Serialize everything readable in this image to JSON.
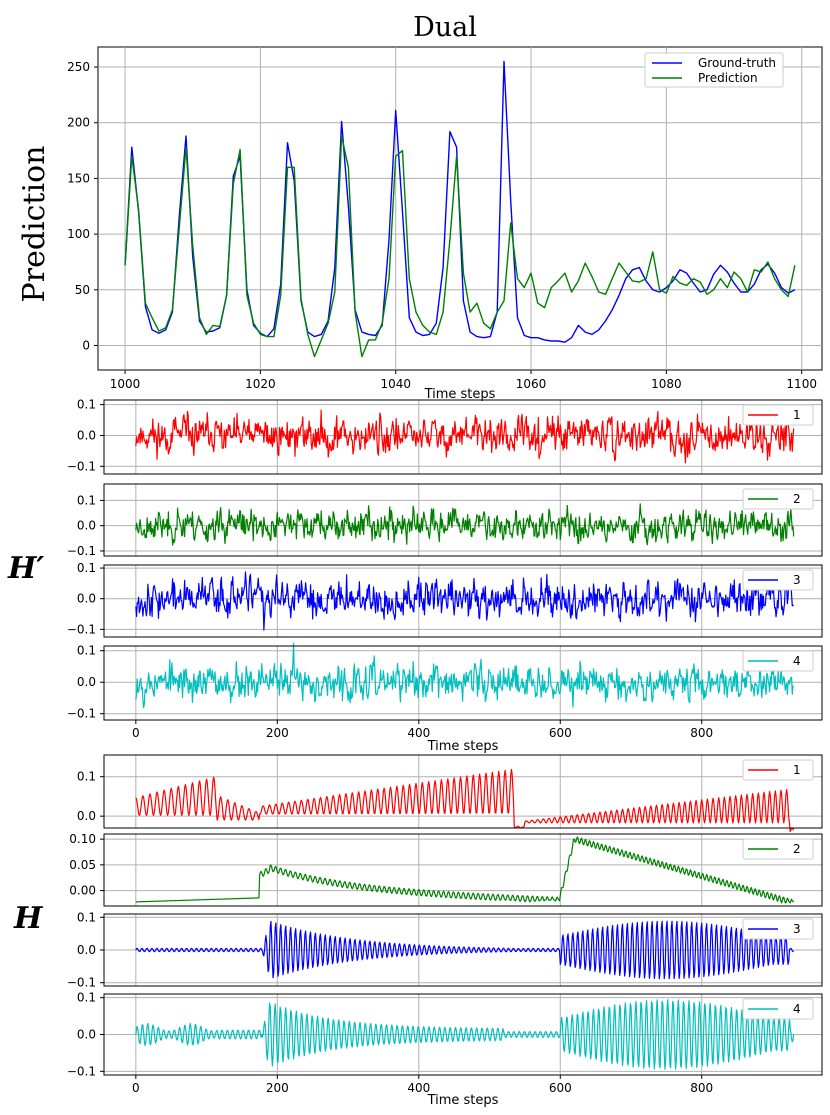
{
  "chart_data": [
    {
      "id": "top",
      "type": "line",
      "title": "Dual",
      "xlabel": "Time steps",
      "ylabel": "Prediction",
      "xlim": [
        996,
        1103
      ],
      "ylim": [
        -22,
        268
      ],
      "xticks": [
        1000,
        1020,
        1040,
        1060,
        1080,
        1100
      ],
      "yticks": [
        0,
        50,
        100,
        150,
        200,
        250
      ],
      "grid": true,
      "legend_position": "top-right",
      "series": [
        {
          "name": "Ground-truth",
          "color": "#0000ff",
          "x": [
            1000,
            1001,
            1002,
            1003,
            1004,
            1005,
            1006,
            1007,
            1008,
            1009,
            1010,
            1011,
            1012,
            1013,
            1014,
            1015,
            1016,
            1017,
            1018,
            1019,
            1020,
            1021,
            1022,
            1023,
            1024,
            1025,
            1026,
            1027,
            1028,
            1029,
            1030,
            1031,
            1032,
            1033,
            1034,
            1035,
            1036,
            1037,
            1038,
            1039,
            1040,
            1041,
            1042,
            1043,
            1044,
            1045,
            1046,
            1047,
            1048,
            1049,
            1050,
            1051,
            1052,
            1053,
            1054,
            1055,
            1056,
            1057,
            1058,
            1059,
            1060,
            1061,
            1062,
            1063,
            1064,
            1065,
            1066,
            1067,
            1068,
            1069,
            1070,
            1071,
            1072,
            1073,
            1074,
            1075,
            1076,
            1077,
            1078,
            1079,
            1080,
            1081,
            1082,
            1083,
            1084,
            1085,
            1086,
            1087,
            1088,
            1089,
            1090,
            1091,
            1092,
            1093,
            1094,
            1095,
            1096,
            1097,
            1098,
            1099
          ],
          "y": [
            72,
            178,
            120,
            35,
            14,
            11,
            14,
            30,
            115,
            188,
            80,
            22,
            12,
            13,
            16,
            45,
            152,
            170,
            50,
            18,
            11,
            8,
            15,
            55,
            182,
            148,
            40,
            12,
            8,
            10,
            22,
            70,
            201,
            125,
            32,
            12,
            10,
            9,
            18,
            95,
            211,
            120,
            25,
            12,
            9,
            10,
            20,
            70,
            192,
            178,
            40,
            12,
            8,
            7,
            8,
            30,
            255,
            130,
            25,
            9,
            7,
            7,
            5,
            4,
            4,
            3,
            7,
            18,
            12,
            10,
            14,
            22,
            32,
            45,
            60,
            68,
            70,
            58,
            50,
            48,
            52,
            58,
            68,
            65,
            56,
            48,
            50,
            64,
            72,
            66,
            56,
            48,
            48,
            55,
            68,
            73,
            65,
            52,
            47,
            50
          ]
        },
        {
          "name": "Prediction",
          "color": "#008000",
          "x": [
            1000,
            1001,
            1002,
            1003,
            1004,
            1005,
            1006,
            1007,
            1008,
            1009,
            1010,
            1011,
            1012,
            1013,
            1014,
            1015,
            1016,
            1017,
            1018,
            1019,
            1020,
            1021,
            1022,
            1023,
            1024,
            1025,
            1026,
            1027,
            1028,
            1029,
            1030,
            1031,
            1032,
            1033,
            1034,
            1035,
            1036,
            1037,
            1038,
            1039,
            1040,
            1041,
            1042,
            1043,
            1044,
            1045,
            1046,
            1047,
            1048,
            1049,
            1050,
            1051,
            1052,
            1053,
            1054,
            1055,
            1056,
            1057,
            1058,
            1059,
            1060,
            1061,
            1062,
            1063,
            1064,
            1065,
            1066,
            1067,
            1068,
            1069,
            1070,
            1071,
            1072,
            1073,
            1074,
            1075,
            1076,
            1077,
            1078,
            1079,
            1080,
            1081,
            1082,
            1083,
            1084,
            1085,
            1086,
            1087,
            1088,
            1089,
            1090,
            1091,
            1092,
            1093,
            1094,
            1095,
            1096,
            1097,
            1098,
            1099
          ],
          "y": [
            72,
            170,
            122,
            38,
            25,
            13,
            16,
            32,
            105,
            178,
            90,
            25,
            10,
            18,
            17,
            45,
            145,
            176,
            45,
            20,
            10,
            8,
            8,
            45,
            160,
            160,
            42,
            10,
            -10,
            5,
            20,
            48,
            188,
            160,
            30,
            -10,
            5,
            5,
            20,
            60,
            170,
            175,
            60,
            30,
            18,
            12,
            10,
            30,
            95,
            170,
            65,
            30,
            38,
            20,
            15,
            30,
            40,
            110,
            60,
            52,
            65,
            38,
            34,
            52,
            58,
            65,
            48,
            58,
            74,
            62,
            48,
            46,
            60,
            74,
            66,
            58,
            57,
            60,
            84,
            50,
            47,
            62,
            56,
            54,
            60,
            57,
            46,
            50,
            60,
            52,
            66,
            60,
            48,
            68,
            66,
            75,
            60,
            50,
            44,
            72
          ]
        }
      ]
    },
    {
      "id": "hprime",
      "type": "line",
      "group_label": "H′",
      "xlabel": "Time steps",
      "xlim": [
        -45,
        970
      ],
      "xticks": [
        0,
        200,
        400,
        600,
        800
      ],
      "grid": true,
      "panels": [
        {
          "name": "1",
          "color": "#ff0000",
          "ylim": [
            -0.125,
            0.115
          ],
          "yticks": [
            -0.1,
            0.0,
            0.1
          ],
          "gen": {
            "kind": "noise",
            "seed": 11,
            "amp": 0.034,
            "n": 931
          }
        },
        {
          "name": "2",
          "color": "#008000",
          "ylim": [
            -0.12,
            0.165
          ],
          "yticks": [
            -0.1,
            0.0,
            0.1
          ],
          "gen": {
            "kind": "noise",
            "seed": 23,
            "amp": 0.035,
            "n": 931
          }
        },
        {
          "name": "3",
          "color": "#0000ff",
          "ylim": [
            -0.125,
            0.11
          ],
          "yticks": [
            -0.1,
            0.0,
            0.1
          ],
          "gen": {
            "kind": "noise",
            "seed": 37,
            "amp": 0.035,
            "n": 931
          }
        },
        {
          "name": "4",
          "color": "#00bfbf",
          "ylim": [
            -0.12,
            0.115
          ],
          "yticks": [
            -0.1,
            0.0,
            0.1
          ],
          "gen": {
            "kind": "noise",
            "seed": 53,
            "amp": 0.033,
            "n": 931
          }
        }
      ]
    },
    {
      "id": "h",
      "type": "line",
      "group_label": "H",
      "xlabel": "Time steps",
      "xlim": [
        -45,
        970
      ],
      "xticks": [
        0,
        200,
        400,
        600,
        800
      ],
      "grid": true,
      "panels": [
        {
          "name": "1",
          "color": "#ff0000",
          "ylim": [
            -0.03,
            0.155
          ],
          "yticks": [
            0.0,
            0.1
          ],
          "gen": {
            "kind": "h1",
            "n": 931
          }
        },
        {
          "name": "2",
          "color": "#008000",
          "ylim": [
            -0.03,
            0.11
          ],
          "yticks": [
            0.0,
            0.05,
            0.1
          ],
          "ytick_labels": [
            "0.00",
            "0.05",
            "0.10"
          ],
          "gen": {
            "kind": "h2",
            "n": 931
          }
        },
        {
          "name": "3",
          "color": "#0000ff",
          "ylim": [
            -0.11,
            0.11
          ],
          "yticks": [
            -0.1,
            0.0,
            0.1
          ],
          "gen": {
            "kind": "h3",
            "n": 931
          }
        },
        {
          "name": "4",
          "color": "#00bfbf",
          "ylim": [
            -0.11,
            0.11
          ],
          "yticks": [
            -0.1,
            0.0,
            0.1
          ],
          "gen": {
            "kind": "h4",
            "n": 931
          }
        }
      ]
    }
  ]
}
